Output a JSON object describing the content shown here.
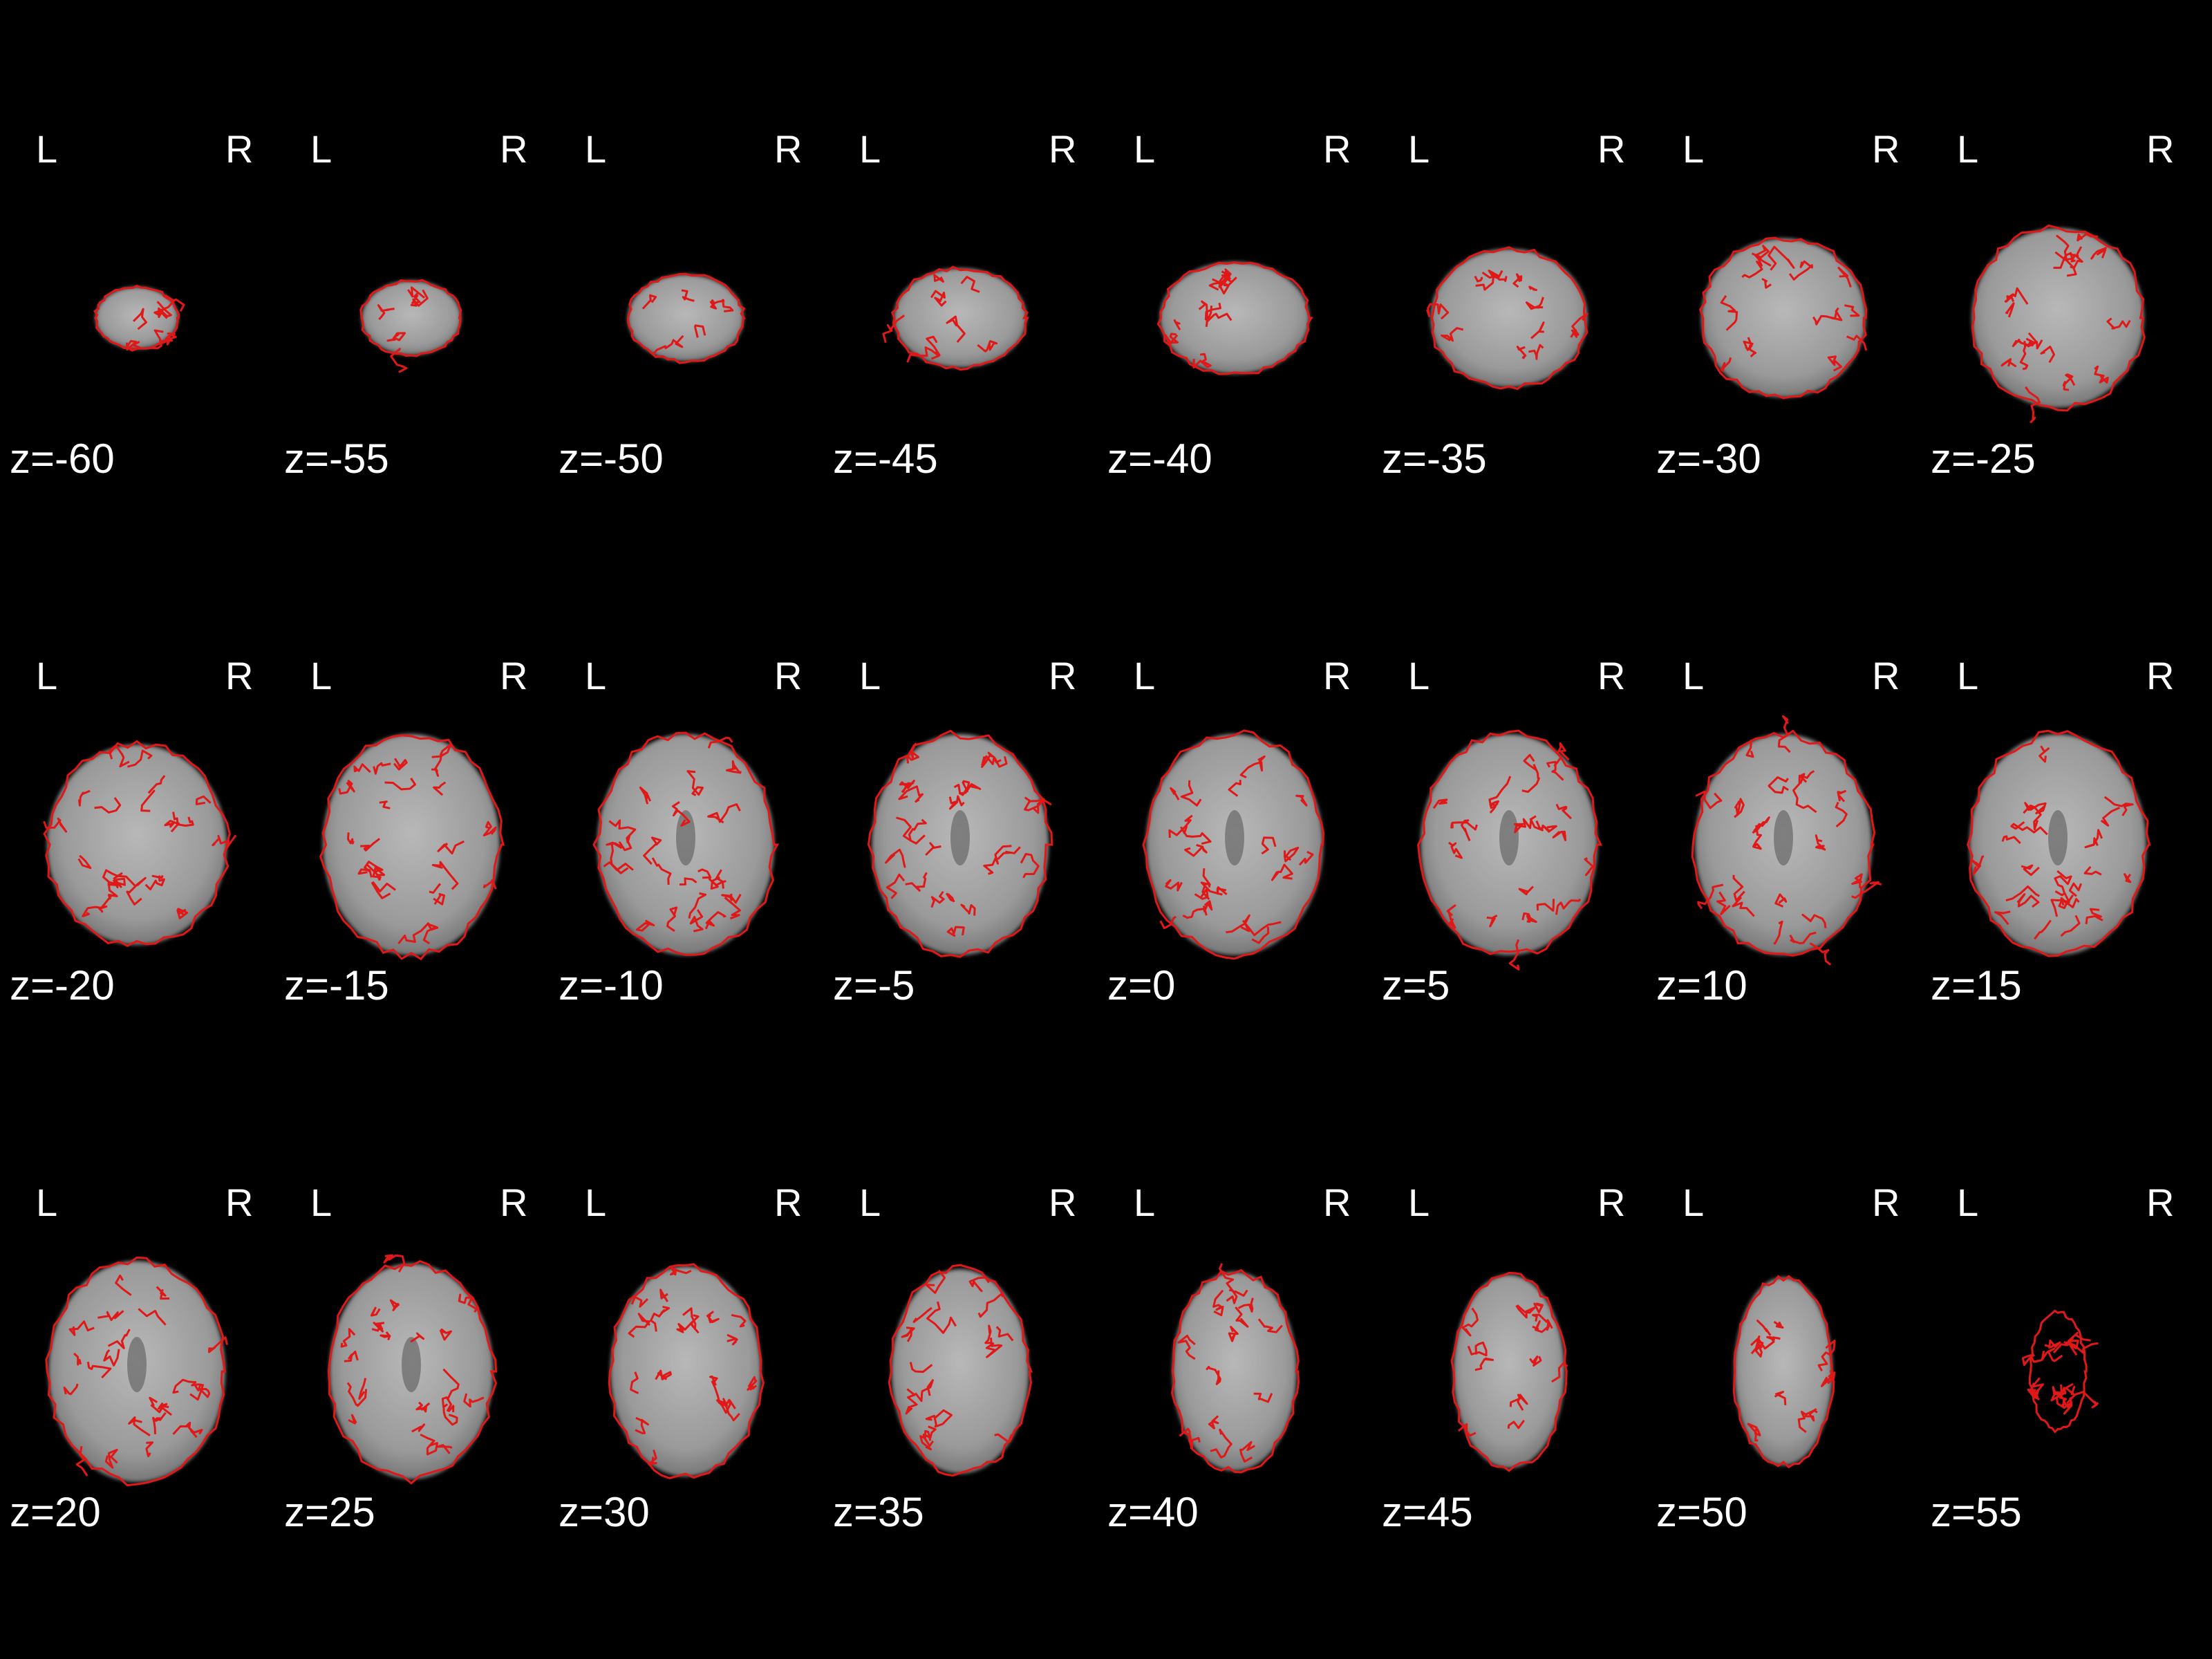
{
  "colors": {
    "background": "#000000",
    "text": "#ffffff",
    "contour": "#e01818",
    "tissue_light": "#bdbdbd",
    "tissue_dark": "#6f6f6f"
  },
  "orientation": {
    "left": "L",
    "right": "R"
  },
  "rows": [
    {
      "slices": [
        {
          "label": "z=-60",
          "z": -60
        },
        {
          "label": "z=-55",
          "z": -55
        },
        {
          "label": "z=-50",
          "z": -50
        },
        {
          "label": "z=-45",
          "z": -45
        },
        {
          "label": "z=-40",
          "z": -40
        },
        {
          "label": "z=-35",
          "z": -35
        },
        {
          "label": "z=-30",
          "z": -30
        },
        {
          "label": "z=-25",
          "z": -25
        }
      ]
    },
    {
      "slices": [
        {
          "label": "z=-20",
          "z": -20
        },
        {
          "label": "z=-15",
          "z": -15
        },
        {
          "label": "z=-10",
          "z": -10
        },
        {
          "label": "z=-5",
          "z": -5
        },
        {
          "label": "z=0",
          "z": 0
        },
        {
          "label": "z=5",
          "z": 5
        },
        {
          "label": "z=10",
          "z": 10
        },
        {
          "label": "z=15",
          "z": 15
        }
      ]
    },
    {
      "slices": [
        {
          "label": "z=20",
          "z": 20
        },
        {
          "label": "z=25",
          "z": 25
        },
        {
          "label": "z=30",
          "z": 30
        },
        {
          "label": "z=35",
          "z": 35
        },
        {
          "label": "z=40",
          "z": 40
        },
        {
          "label": "z=45",
          "z": 45
        },
        {
          "label": "z=50",
          "z": 50
        },
        {
          "label": "z=55",
          "z": 55
        }
      ]
    }
  ]
}
